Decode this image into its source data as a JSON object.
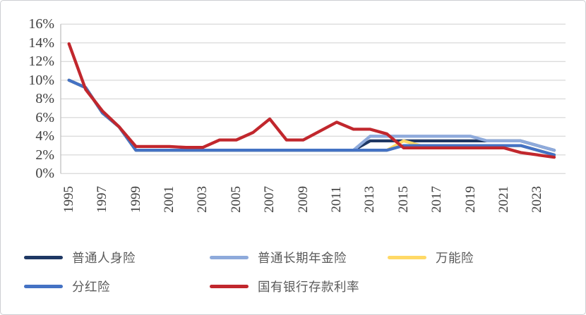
{
  "chart_data": {
    "type": "line",
    "title": "",
    "xlabel": "",
    "ylabel": "",
    "x": [
      1995,
      1996,
      1997,
      1998,
      1999,
      2000,
      2001,
      2002,
      2003,
      2004,
      2005,
      2006,
      2007,
      2008,
      2009,
      2010,
      2011,
      2012,
      2013,
      2014,
      2015,
      2016,
      2017,
      2018,
      2019,
      2020,
      2021,
      2022,
      2023,
      2024
    ],
    "x_tick_labels": [
      "1995",
      "1997",
      "1999",
      "2001",
      "2003",
      "2005",
      "2007",
      "2009",
      "2011",
      "2013",
      "2015",
      "2017",
      "2019",
      "2021",
      "2023"
    ],
    "y_tick_values": [
      0,
      2,
      4,
      6,
      8,
      10,
      12,
      14,
      16
    ],
    "y_tick_labels": [
      "0%",
      "2%",
      "4%",
      "6%",
      "8%",
      "10%",
      "12%",
      "14%",
      "16%"
    ],
    "ylim": [
      0,
      16
    ],
    "grid": true,
    "legend_position": "bottom",
    "series": [
      {
        "name": "普通人身险",
        "color": "#1F3864",
        "values": [
          10,
          9.2,
          6.5,
          5,
          2.5,
          2.5,
          2.5,
          2.5,
          2.5,
          2.5,
          2.5,
          2.5,
          2.5,
          2.5,
          2.5,
          2.5,
          2.5,
          2.5,
          3.5,
          3.5,
          3.5,
          3.5,
          3.5,
          3.5,
          3.5,
          3.5,
          3.5,
          3.5,
          3,
          2.5
        ]
      },
      {
        "name": "普通长期年金险",
        "color": "#8EAADB",
        "values": [
          10,
          9.2,
          6.5,
          5,
          2.5,
          2.5,
          2.5,
          2.5,
          2.5,
          2.5,
          2.5,
          2.5,
          2.5,
          2.5,
          2.5,
          2.5,
          2.5,
          2.5,
          4,
          4,
          4,
          4,
          4,
          4,
          4,
          3.5,
          3.5,
          3.5,
          3,
          2.5
        ]
      },
      {
        "name": "万能险",
        "color": "#FFD966",
        "values": [
          10,
          9.2,
          6.5,
          5,
          2.5,
          2.5,
          2.5,
          2.5,
          2.5,
          2.5,
          2.5,
          2.5,
          2.5,
          2.5,
          2.5,
          2.5,
          2.5,
          2.5,
          2.5,
          2.5,
          3.5,
          3,
          3,
          3,
          3,
          3,
          3,
          3,
          2.5,
          2
        ]
      },
      {
        "name": "分红险",
        "color": "#4472C4",
        "values": [
          10,
          9.2,
          6.5,
          5,
          2.5,
          2.5,
          2.5,
          2.5,
          2.5,
          2.5,
          2.5,
          2.5,
          2.5,
          2.5,
          2.5,
          2.5,
          2.5,
          2.5,
          2.5,
          2.5,
          3,
          3,
          3,
          3,
          3,
          3,
          3,
          3,
          2.5,
          2
        ]
      },
      {
        "name": "国有银行存款利率",
        "color": "#C1272D",
        "values": [
          13.9,
          9,
          6.7,
          5,
          2.9,
          2.9,
          2.9,
          2.8,
          2.8,
          3.6,
          3.6,
          4.4,
          5.85,
          3.6,
          3.6,
          4.55,
          5.5,
          4.75,
          4.75,
          4.25,
          2.75,
          2.75,
          2.75,
          2.75,
          2.75,
          2.75,
          2.75,
          2.25,
          2,
          1.75
        ]
      }
    ]
  },
  "colors": {
    "background": "#FFFFFF",
    "border": "#CDCED2",
    "gridline": "#DCDCDC",
    "axis_line": "#BFBFBF",
    "tick_text": "#3F3F3F",
    "legend_text": "#595959"
  }
}
